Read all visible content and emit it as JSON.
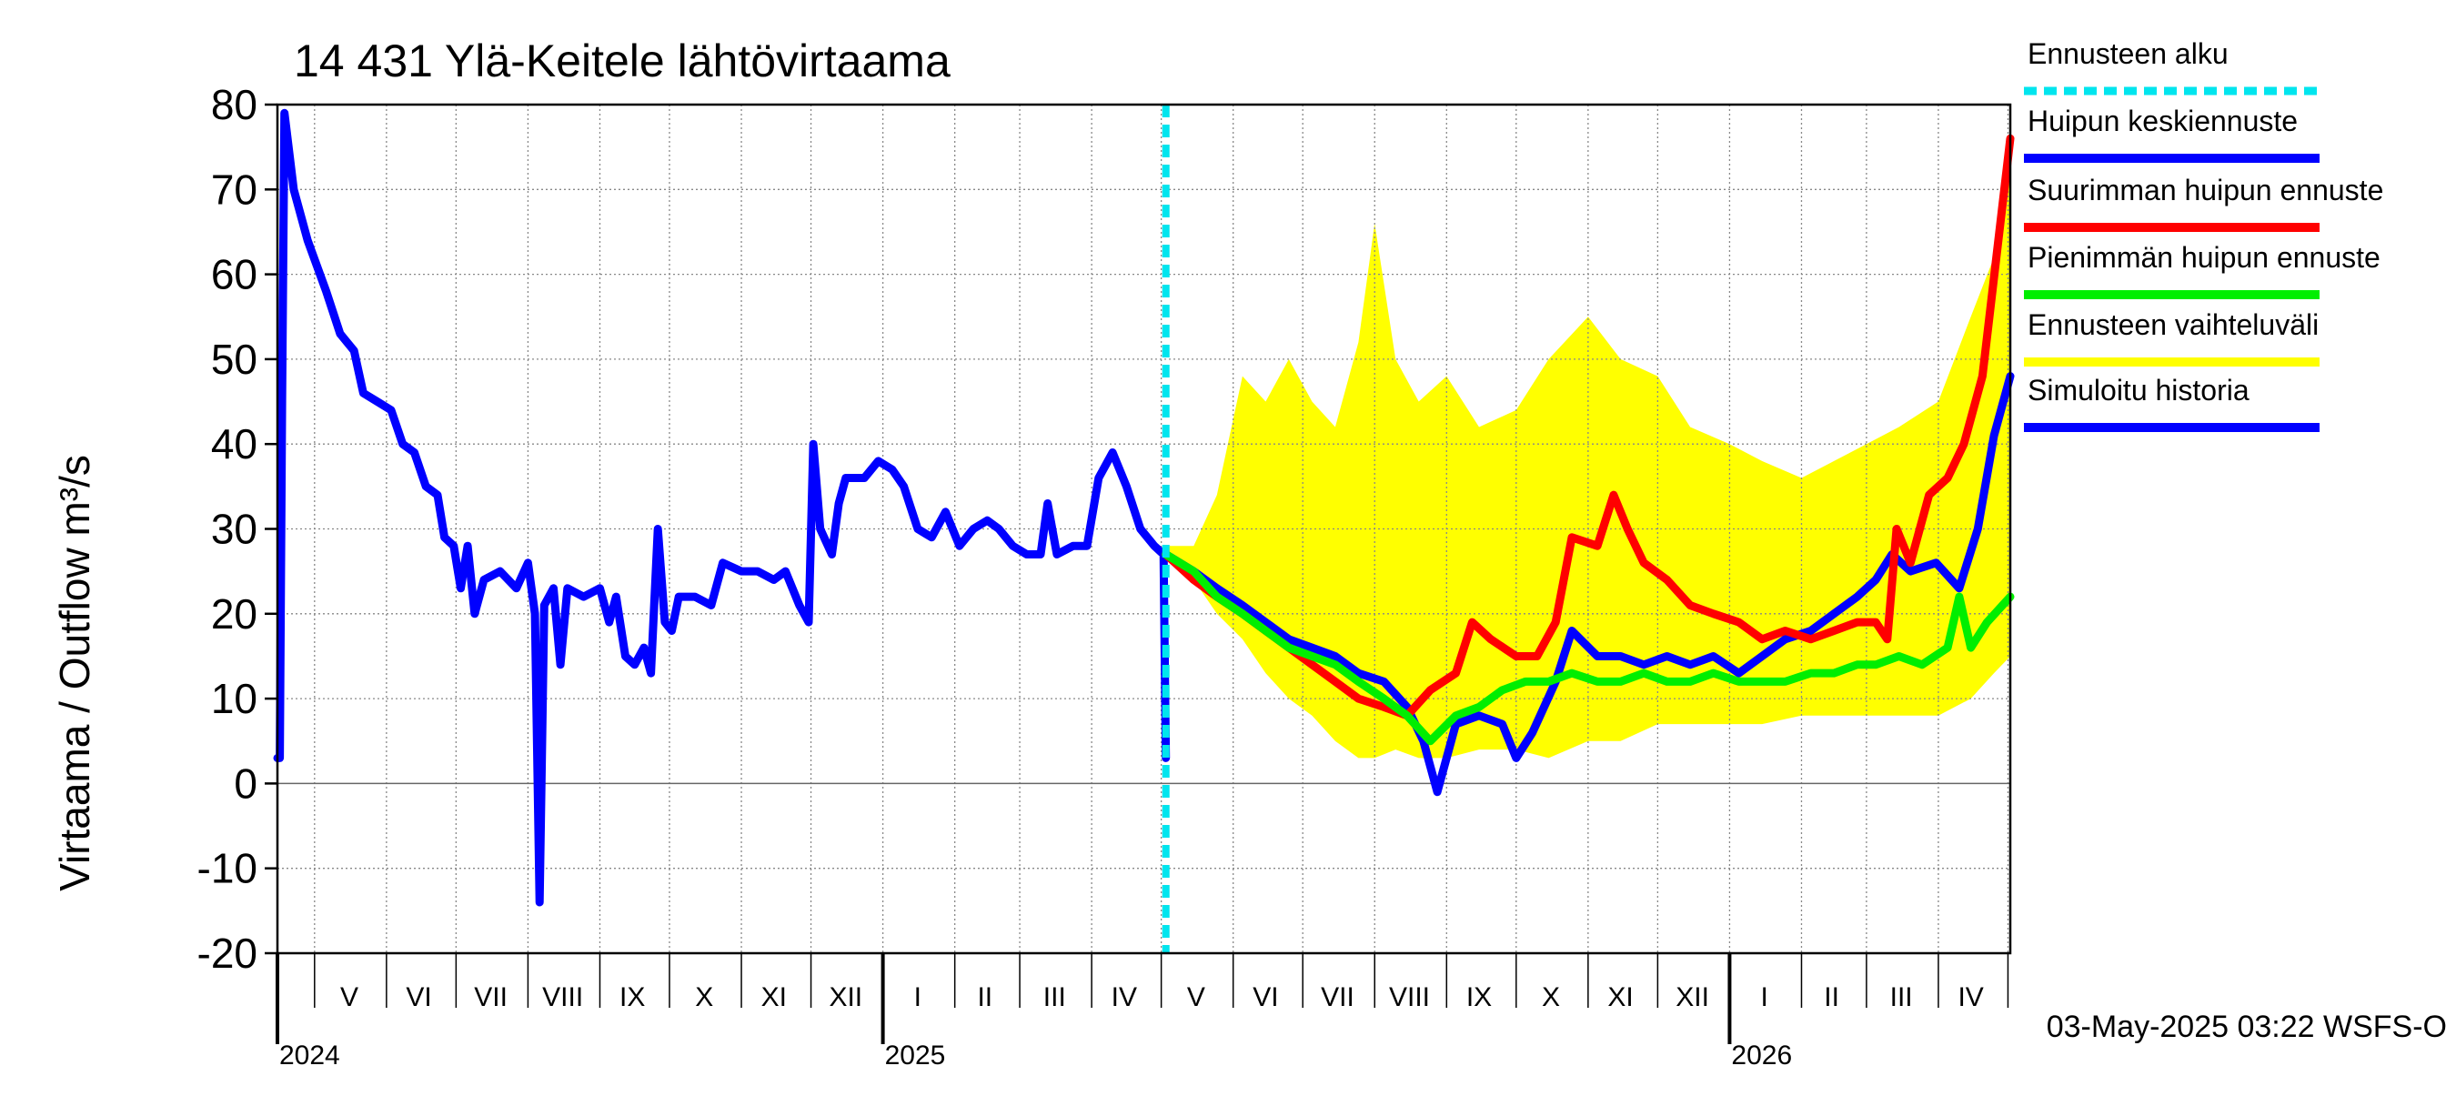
{
  "chart_data": {
    "type": "line",
    "title": "14 431 Ylä-Keitele lähtövirtaama",
    "ylabel": "Virtaama / Outflow    m³/s",
    "ylim": [
      -20,
      80
    ],
    "yticks": [
      -20,
      -10,
      0,
      10,
      20,
      30,
      40,
      50,
      60,
      70,
      80
    ],
    "x_start": "2024-04-15",
    "x_end": "2026-05-02",
    "forecast_start": "2025-05-03",
    "month_labels": [
      {
        "label": "V",
        "date": "2024-05-16"
      },
      {
        "label": "VI",
        "date": "2024-06-15"
      },
      {
        "label": "VII",
        "date": "2024-07-16"
      },
      {
        "label": "VIII",
        "date": "2024-08-16"
      },
      {
        "label": "IX",
        "date": "2024-09-15"
      },
      {
        "label": "X",
        "date": "2024-10-16"
      },
      {
        "label": "XI",
        "date": "2024-11-15"
      },
      {
        "label": "XII",
        "date": "2024-12-16"
      },
      {
        "label": "I",
        "date": "2025-01-16"
      },
      {
        "label": "II",
        "date": "2025-02-14"
      },
      {
        "label": "III",
        "date": "2025-03-16"
      },
      {
        "label": "IV",
        "date": "2025-04-15"
      },
      {
        "label": "V",
        "date": "2025-05-16"
      },
      {
        "label": "VI",
        "date": "2025-06-15"
      },
      {
        "label": "VII",
        "date": "2025-07-16"
      },
      {
        "label": "VIII",
        "date": "2025-08-16"
      },
      {
        "label": "IX",
        "date": "2025-09-15"
      },
      {
        "label": "X",
        "date": "2025-10-16"
      },
      {
        "label": "XI",
        "date": "2025-11-15"
      },
      {
        "label": "XII",
        "date": "2025-12-16"
      },
      {
        "label": "I",
        "date": "2026-01-16"
      },
      {
        "label": "II",
        "date": "2026-02-14"
      },
      {
        "label": "III",
        "date": "2026-03-16"
      },
      {
        "label": "IV",
        "date": "2026-04-15"
      }
    ],
    "year_labels": [
      {
        "label": "2024",
        "date": "2024-04-15"
      },
      {
        "label": "2025",
        "date": "2025-01-01"
      },
      {
        "label": "2026",
        "date": "2026-01-01"
      }
    ],
    "grid": true,
    "legend_position": "right",
    "legend": [
      {
        "label": "Ennusteen alku",
        "color": "#00e5ee",
        "style": "dashed"
      },
      {
        "label": "Huipun keskiennuste",
        "color": "#0000ff",
        "style": "solid"
      },
      {
        "label": "Suurimman huipun ennuste",
        "color": "#ff0000",
        "style": "solid"
      },
      {
        "label": "Pienimmän huipun ennuste",
        "color": "#00ee00",
        "style": "solid"
      },
      {
        "label": "Ennusteen vaihteluväli",
        "color": "#ffff00",
        "style": "band"
      },
      {
        "label": "Simuloitu historia",
        "color": "#0000ff",
        "style": "solid"
      }
    ],
    "series": [
      {
        "name": "Simuloitu historia",
        "color": "#0000ff",
        "points": [
          [
            "2024-04-15",
            3
          ],
          [
            "2024-04-16",
            3
          ],
          [
            "2024-04-17",
            45
          ],
          [
            "2024-04-18",
            79
          ],
          [
            "2024-04-22",
            70
          ],
          [
            "2024-04-28",
            64
          ],
          [
            "2024-05-06",
            58
          ],
          [
            "2024-05-12",
            53
          ],
          [
            "2024-05-18",
            51
          ],
          [
            "2024-05-22",
            46
          ],
          [
            "2024-05-28",
            45
          ],
          [
            "2024-06-03",
            44
          ],
          [
            "2024-06-08",
            40
          ],
          [
            "2024-06-13",
            39
          ],
          [
            "2024-06-18",
            35
          ],
          [
            "2024-06-23",
            34
          ],
          [
            "2024-06-26",
            29
          ],
          [
            "2024-06-30",
            28
          ],
          [
            "2024-07-03",
            23
          ],
          [
            "2024-07-06",
            28
          ],
          [
            "2024-07-09",
            20
          ],
          [
            "2024-07-13",
            24
          ],
          [
            "2024-07-20",
            25
          ],
          [
            "2024-07-27",
            23
          ],
          [
            "2024-08-01",
            26
          ],
          [
            "2024-08-04",
            20
          ],
          [
            "2024-08-06",
            -14
          ],
          [
            "2024-08-08",
            21
          ],
          [
            "2024-08-12",
            23
          ],
          [
            "2024-08-15",
            14
          ],
          [
            "2024-08-18",
            23
          ],
          [
            "2024-08-25",
            22
          ],
          [
            "2024-09-01",
            23
          ],
          [
            "2024-09-05",
            19
          ],
          [
            "2024-09-08",
            22
          ],
          [
            "2024-09-12",
            15
          ],
          [
            "2024-09-16",
            14
          ],
          [
            "2024-09-20",
            16
          ],
          [
            "2024-09-23",
            13
          ],
          [
            "2024-09-26",
            30
          ],
          [
            "2024-09-29",
            19
          ],
          [
            "2024-10-02",
            18
          ],
          [
            "2024-10-05",
            22
          ],
          [
            "2024-10-12",
            22
          ],
          [
            "2024-10-19",
            21
          ],
          [
            "2024-10-24",
            26
          ],
          [
            "2024-11-01",
            25
          ],
          [
            "2024-11-08",
            25
          ],
          [
            "2024-11-15",
            24
          ],
          [
            "2024-11-20",
            25
          ],
          [
            "2024-11-26",
            21
          ],
          [
            "2024-11-30",
            19
          ],
          [
            "2024-12-02",
            40
          ],
          [
            "2024-12-05",
            30
          ],
          [
            "2024-12-10",
            27
          ],
          [
            "2024-12-13",
            33
          ],
          [
            "2024-12-16",
            36
          ],
          [
            "2024-12-24",
            36
          ],
          [
            "2024-12-30",
            38
          ],
          [
            "2025-01-05",
            37
          ],
          [
            "2025-01-10",
            35
          ],
          [
            "2025-01-16",
            30
          ],
          [
            "2025-01-22",
            29
          ],
          [
            "2025-01-28",
            32
          ],
          [
            "2025-02-03",
            28
          ],
          [
            "2025-02-09",
            30
          ],
          [
            "2025-02-15",
            31
          ],
          [
            "2025-02-20",
            30
          ],
          [
            "2025-02-26",
            28
          ],
          [
            "2025-03-04",
            27
          ],
          [
            "2025-03-10",
            27
          ],
          [
            "2025-03-13",
            33
          ],
          [
            "2025-03-17",
            27
          ],
          [
            "2025-03-24",
            28
          ],
          [
            "2025-03-30",
            28
          ],
          [
            "2025-04-04",
            36
          ],
          [
            "2025-04-10",
            39
          ],
          [
            "2025-04-16",
            35
          ],
          [
            "2025-04-22",
            30
          ],
          [
            "2025-04-28",
            28
          ],
          [
            "2025-05-02",
            27
          ],
          [
            "2025-05-03",
            3
          ]
        ]
      },
      {
        "name": "Huipun keskiennuste",
        "color": "#0000ff",
        "points": [
          [
            "2025-05-03",
            27
          ],
          [
            "2025-05-15",
            25
          ],
          [
            "2025-05-25",
            23
          ],
          [
            "2025-06-05",
            21
          ],
          [
            "2025-06-15",
            19
          ],
          [
            "2025-06-25",
            17
          ],
          [
            "2025-07-05",
            16
          ],
          [
            "2025-07-15",
            15
          ],
          [
            "2025-07-25",
            13
          ],
          [
            "2025-08-05",
            12
          ],
          [
            "2025-08-15",
            9
          ],
          [
            "2025-08-22",
            5
          ],
          [
            "2025-08-28",
            -1
          ],
          [
            "2025-09-05",
            7
          ],
          [
            "2025-09-15",
            8
          ],
          [
            "2025-09-25",
            7
          ],
          [
            "2025-10-01",
            3
          ],
          [
            "2025-10-08",
            6
          ],
          [
            "2025-10-18",
            12
          ],
          [
            "2025-10-25",
            18
          ],
          [
            "2025-11-05",
            15
          ],
          [
            "2025-11-15",
            15
          ],
          [
            "2025-11-25",
            14
          ],
          [
            "2025-12-05",
            15
          ],
          [
            "2025-12-15",
            14
          ],
          [
            "2025-12-25",
            15
          ],
          [
            "2026-01-05",
            13
          ],
          [
            "2026-01-15",
            15
          ],
          [
            "2026-01-25",
            17
          ],
          [
            "2026-02-05",
            18
          ],
          [
            "2026-02-15",
            20
          ],
          [
            "2026-02-25",
            22
          ],
          [
            "2026-03-05",
            24
          ],
          [
            "2026-03-12",
            27
          ],
          [
            "2026-03-20",
            25
          ],
          [
            "2026-03-31",
            26
          ],
          [
            "2026-04-10",
            23
          ],
          [
            "2026-04-18",
            30
          ],
          [
            "2026-04-25",
            41
          ],
          [
            "2026-05-02",
            48
          ]
        ]
      },
      {
        "name": "Suurimman huipun ennuste",
        "color": "#ff0000",
        "points": [
          [
            "2025-05-03",
            27
          ],
          [
            "2025-05-15",
            24
          ],
          [
            "2025-05-25",
            22
          ],
          [
            "2025-06-05",
            20
          ],
          [
            "2025-06-15",
            18
          ],
          [
            "2025-06-25",
            16
          ],
          [
            "2025-07-05",
            14
          ],
          [
            "2025-07-15",
            12
          ],
          [
            "2025-07-25",
            10
          ],
          [
            "2025-08-05",
            9
          ],
          [
            "2025-08-15",
            8
          ],
          [
            "2025-08-25",
            11
          ],
          [
            "2025-09-05",
            13
          ],
          [
            "2025-09-12",
            19
          ],
          [
            "2025-09-20",
            17
          ],
          [
            "2025-10-01",
            15
          ],
          [
            "2025-10-10",
            15
          ],
          [
            "2025-10-18",
            19
          ],
          [
            "2025-10-25",
            29
          ],
          [
            "2025-11-05",
            28
          ],
          [
            "2025-11-12",
            34
          ],
          [
            "2025-11-18",
            30
          ],
          [
            "2025-11-25",
            26
          ],
          [
            "2025-12-05",
            24
          ],
          [
            "2025-12-15",
            21
          ],
          [
            "2025-12-25",
            20
          ],
          [
            "2026-01-05",
            19
          ],
          [
            "2026-01-15",
            17
          ],
          [
            "2026-01-25",
            18
          ],
          [
            "2026-02-05",
            17
          ],
          [
            "2026-02-15",
            18
          ],
          [
            "2026-02-25",
            19
          ],
          [
            "2026-03-05",
            19
          ],
          [
            "2026-03-10",
            17
          ],
          [
            "2026-03-14",
            30
          ],
          [
            "2026-03-20",
            26
          ],
          [
            "2026-03-28",
            34
          ],
          [
            "2026-04-05",
            36
          ],
          [
            "2026-04-12",
            40
          ],
          [
            "2026-04-20",
            48
          ],
          [
            "2026-04-26",
            62
          ],
          [
            "2026-05-02",
            76
          ]
        ]
      },
      {
        "name": "Pienimmän huipun ennuste",
        "color": "#00ee00",
        "points": [
          [
            "2025-05-03",
            27
          ],
          [
            "2025-05-15",
            25
          ],
          [
            "2025-05-25",
            22
          ],
          [
            "2025-06-05",
            20
          ],
          [
            "2025-06-15",
            18
          ],
          [
            "2025-06-25",
            16
          ],
          [
            "2025-07-05",
            15
          ],
          [
            "2025-07-15",
            14
          ],
          [
            "2025-07-25",
            12
          ],
          [
            "2025-08-05",
            10
          ],
          [
            "2025-08-15",
            8
          ],
          [
            "2025-08-25",
            5
          ],
          [
            "2025-09-05",
            8
          ],
          [
            "2025-09-15",
            9
          ],
          [
            "2025-09-25",
            11
          ],
          [
            "2025-10-05",
            12
          ],
          [
            "2025-10-15",
            12
          ],
          [
            "2025-10-25",
            13
          ],
          [
            "2025-11-05",
            12
          ],
          [
            "2025-11-15",
            12
          ],
          [
            "2025-11-25",
            13
          ],
          [
            "2025-12-05",
            12
          ],
          [
            "2025-12-15",
            12
          ],
          [
            "2025-12-25",
            13
          ],
          [
            "2026-01-05",
            12
          ],
          [
            "2026-01-15",
            12
          ],
          [
            "2026-01-25",
            12
          ],
          [
            "2026-02-05",
            13
          ],
          [
            "2026-02-15",
            13
          ],
          [
            "2026-02-25",
            14
          ],
          [
            "2026-03-05",
            14
          ],
          [
            "2026-03-15",
            15
          ],
          [
            "2026-03-25",
            14
          ],
          [
            "2026-04-05",
            16
          ],
          [
            "2026-04-10",
            22
          ],
          [
            "2026-04-15",
            16
          ],
          [
            "2026-04-22",
            19
          ],
          [
            "2026-05-02",
            22
          ]
        ]
      }
    ],
    "band": {
      "name": "Ennusteen vaihteluväli",
      "color": "#ffff00",
      "points": [
        [
          "2025-05-03",
          28,
          27
        ],
        [
          "2025-05-15",
          28,
          24
        ],
        [
          "2025-05-25",
          34,
          20
        ],
        [
          "2025-06-05",
          48,
          17
        ],
        [
          "2025-06-15",
          45,
          13
        ],
        [
          "2025-06-25",
          50,
          10
        ],
        [
          "2025-07-05",
          45,
          8
        ],
        [
          "2025-07-15",
          42,
          5
        ],
        [
          "2025-07-25",
          52,
          3
        ],
        [
          "2025-08-01",
          66,
          3
        ],
        [
          "2025-08-10",
          50,
          4
        ],
        [
          "2025-08-20",
          45,
          3
        ],
        [
          "2025-09-01",
          48,
          3
        ],
        [
          "2025-09-15",
          42,
          4
        ],
        [
          "2025-10-01",
          44,
          4
        ],
        [
          "2025-10-15",
          50,
          3
        ],
        [
          "2025-11-01",
          55,
          5
        ],
        [
          "2025-11-15",
          50,
          5
        ],
        [
          "2025-12-01",
          48,
          7
        ],
        [
          "2025-12-15",
          42,
          7
        ],
        [
          "2026-01-01",
          40,
          7
        ],
        [
          "2026-01-15",
          38,
          7
        ],
        [
          "2026-02-01",
          36,
          8
        ],
        [
          "2026-02-15",
          38,
          8
        ],
        [
          "2026-03-01",
          40,
          8
        ],
        [
          "2026-03-15",
          42,
          8
        ],
        [
          "2026-04-01",
          45,
          8
        ],
        [
          "2026-04-15",
          55,
          10
        ],
        [
          "2026-04-25",
          62,
          13
        ],
        [
          "2026-05-02",
          75,
          15
        ]
      ]
    }
  },
  "footer": {
    "timestamp": "03-May-2025 03:22 WSFS-O"
  }
}
